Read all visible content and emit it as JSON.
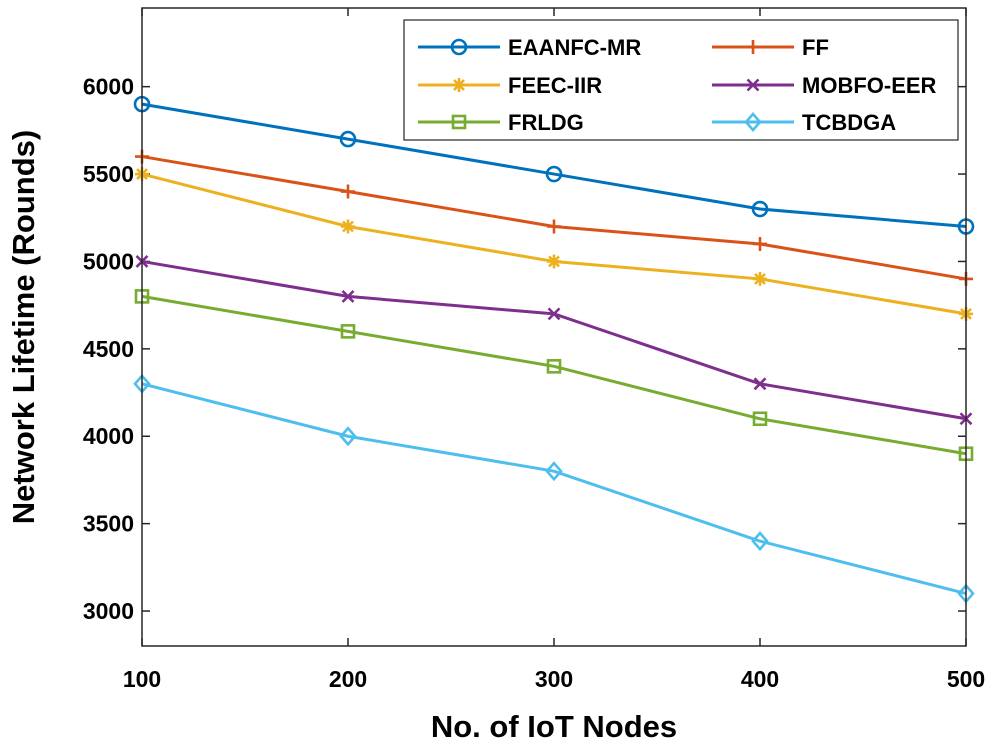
{
  "chart_data": {
    "type": "line",
    "title": "",
    "xlabel": "No. of IoT Nodes",
    "ylabel": "Network Lifetime (Rounds)",
    "x": [
      100,
      200,
      300,
      400,
      500
    ],
    "xlim": [
      100,
      500
    ],
    "ylim": [
      2800,
      6450
    ],
    "xticks": [
      "100",
      "200",
      "300",
      "400",
      "500"
    ],
    "yticks": [
      "3000",
      "3500",
      "4000",
      "4500",
      "5000",
      "5500",
      "6000"
    ],
    "ytick_values": [
      3000,
      3500,
      4000,
      4500,
      5000,
      5500,
      6000
    ],
    "grid": false,
    "legend_position": "top-right",
    "series": [
      {
        "name": "EAANFC-MR",
        "color": "#0072BD",
        "marker": "circle",
        "values": [
          5900,
          5700,
          5500,
          5300,
          5200
        ]
      },
      {
        "name": "FF",
        "color": "#D95319",
        "marker": "plus",
        "values": [
          5600,
          5400,
          5200,
          5100,
          4900
        ]
      },
      {
        "name": "FEEC-IIR",
        "color": "#EDB120",
        "marker": "asterisk",
        "values": [
          5500,
          5200,
          5000,
          4900,
          4700
        ]
      },
      {
        "name": "MOBFO-EER",
        "color": "#7E2F8E",
        "marker": "x",
        "values": [
          5000,
          4800,
          4700,
          4300,
          4100
        ]
      },
      {
        "name": "FRLDG",
        "color": "#77AC30",
        "marker": "square",
        "values": [
          4800,
          4600,
          4400,
          4100,
          3900
        ]
      },
      {
        "name": "TCBDGA",
        "color": "#4DBEEE",
        "marker": "diamond",
        "values": [
          4300,
          4000,
          3800,
          3400,
          3100
        ]
      }
    ]
  }
}
